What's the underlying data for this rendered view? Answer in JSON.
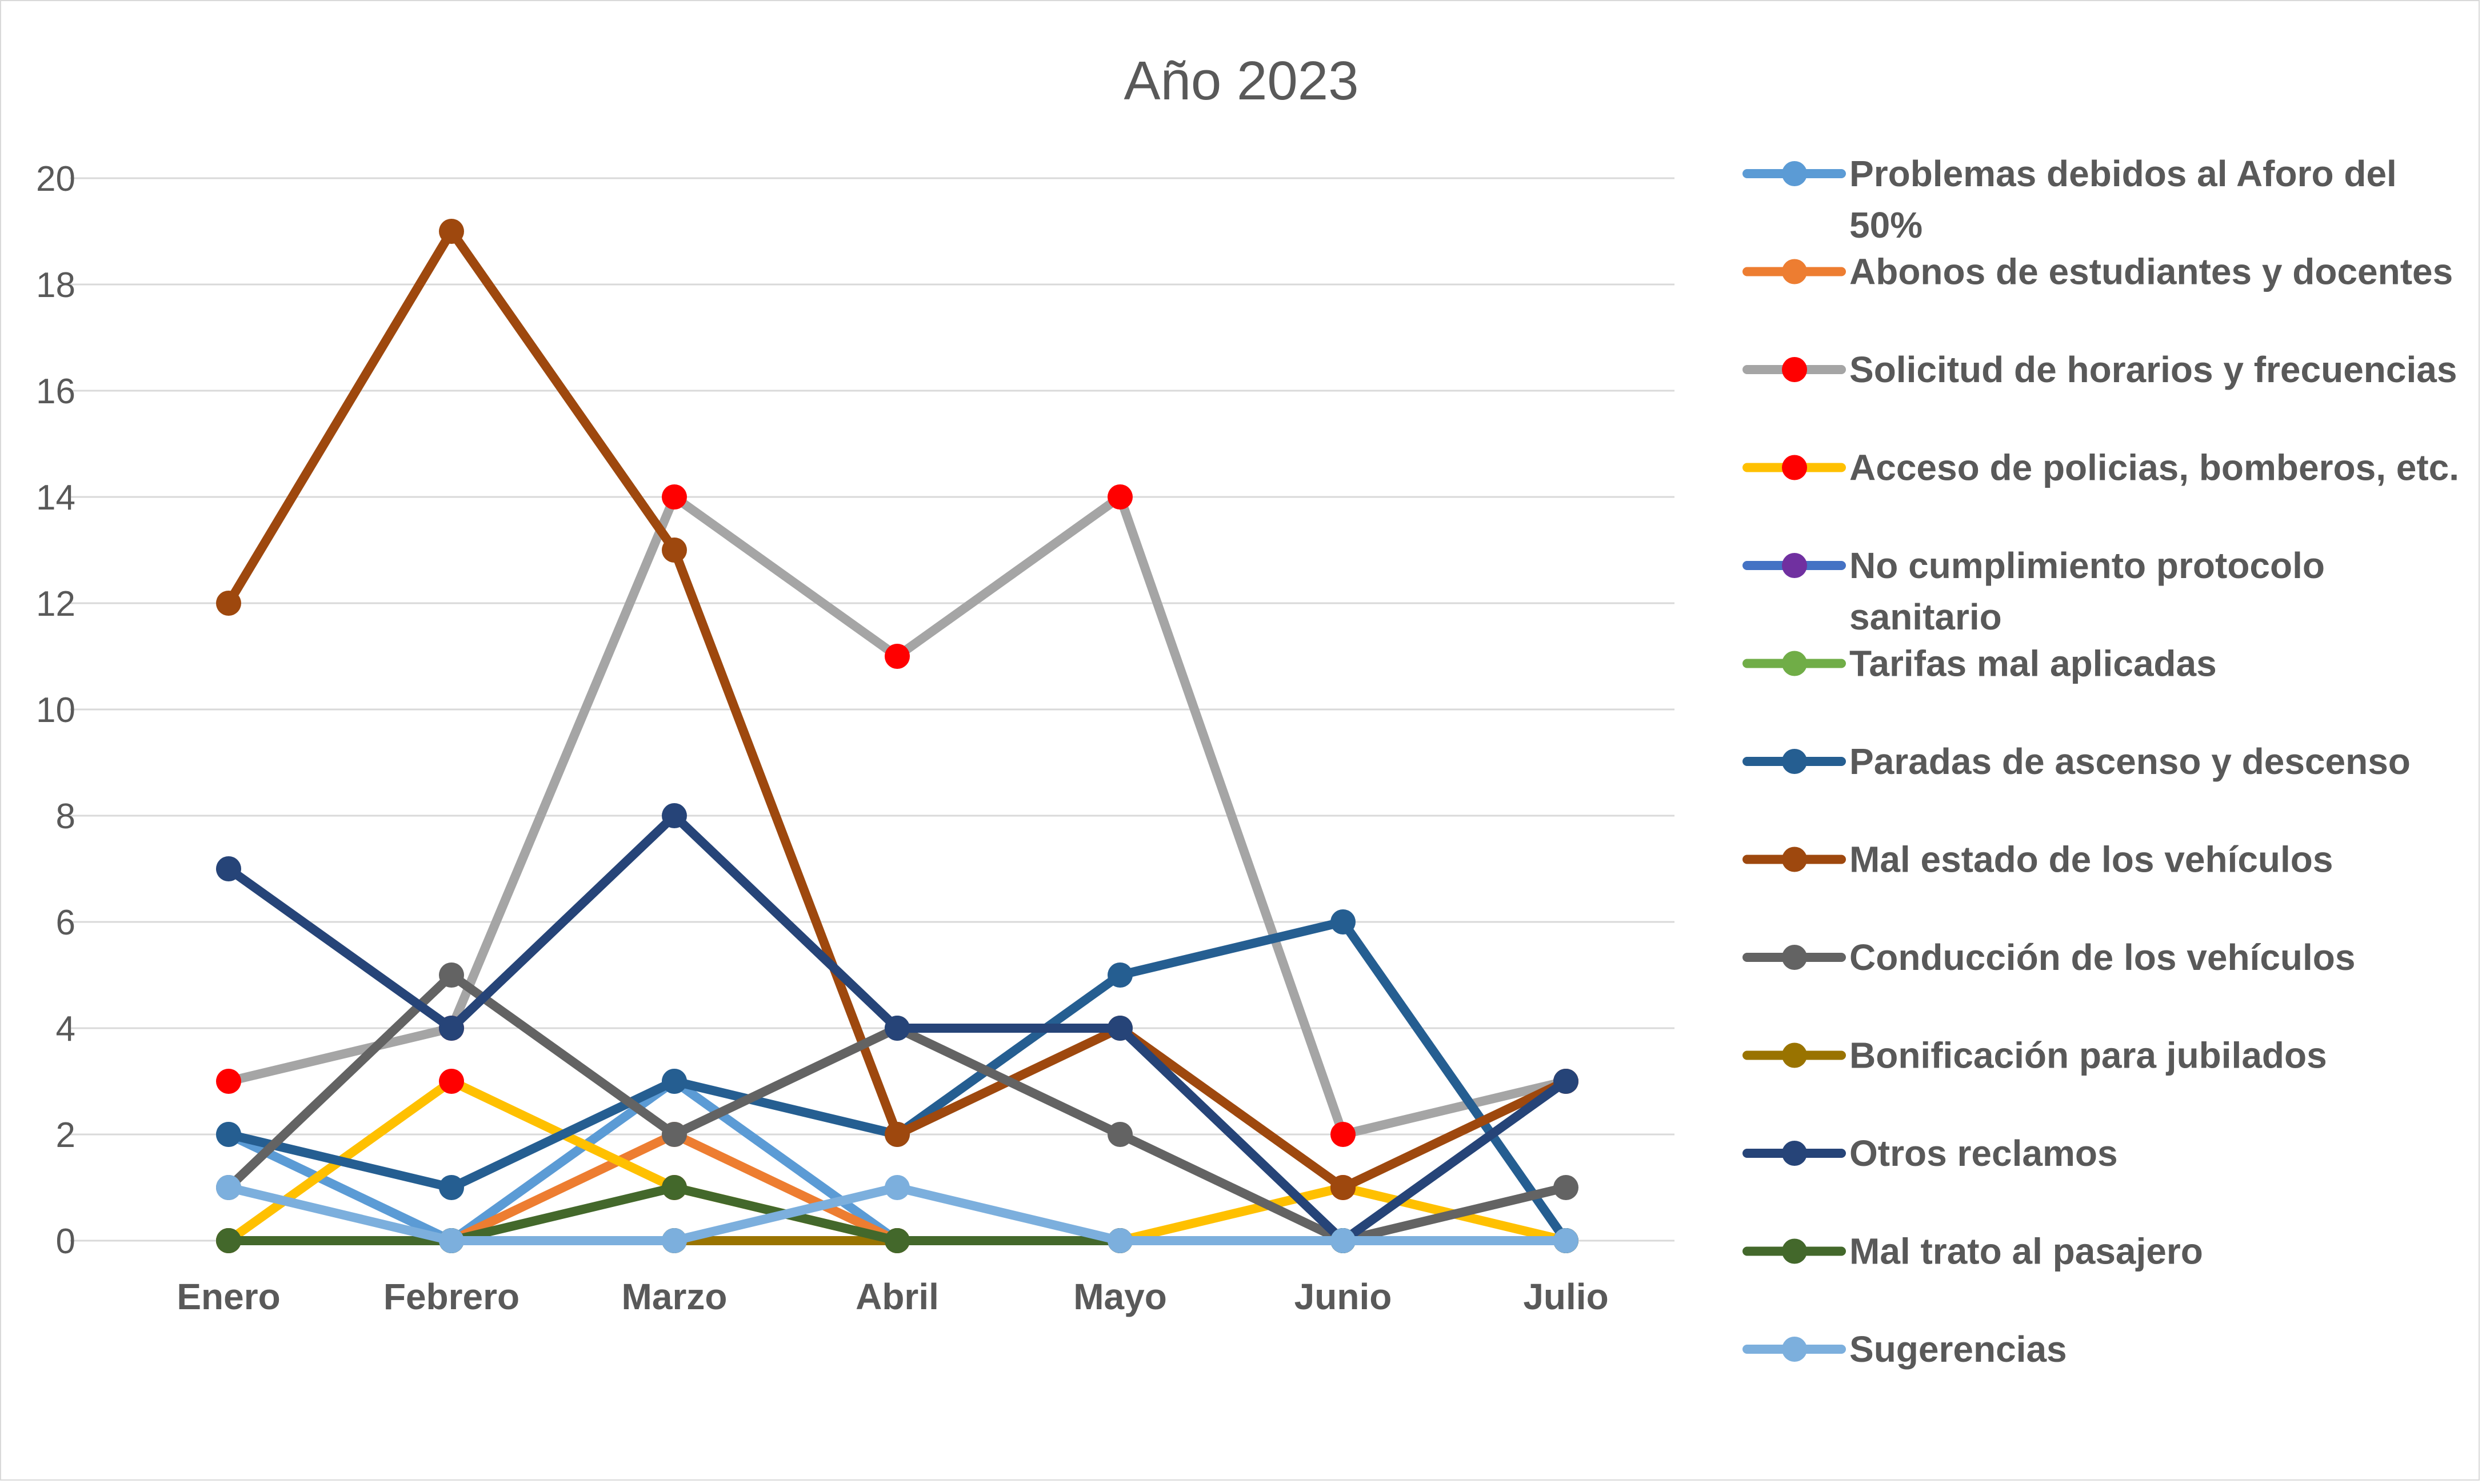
{
  "chart_data": {
    "type": "line",
    "title": "Año 2023",
    "xlabel": "",
    "ylabel": "",
    "ylim": [
      0,
      20
    ],
    "yticks": [
      "0",
      "2",
      "4",
      "6",
      "8",
      "10",
      "12",
      "14",
      "16",
      "18",
      "20"
    ],
    "grid": true,
    "legend_position": "right",
    "categories": [
      "Enero",
      "Febrero",
      "Marzo",
      "Abril",
      "Mayo",
      "Junio",
      "Julio"
    ],
    "series": [
      {
        "name": "Problemas debidos al  Aforo del 50%",
        "legend_lines": [
          "Problemas debidos al  Aforo del",
          "50%"
        ],
        "color": "#5b9bd5",
        "values": [
          2,
          0,
          3,
          0,
          0,
          0,
          0
        ]
      },
      {
        "name": "Abonos de estudiantes y docentes",
        "legend_lines": [
          "Abonos de estudiantes y docentes"
        ],
        "color": "#ed7d31",
        "values": [
          0,
          0,
          2,
          0,
          0,
          0,
          0
        ]
      },
      {
        "name": "Solicitud de horarios y frecuencias",
        "legend_lines": [
          "Solicitud de horarios y frecuencias"
        ],
        "color": "#a5a5a5",
        "marker_color": "#ff0000",
        "values": [
          3,
          4,
          14,
          11,
          14,
          2,
          3
        ]
      },
      {
        "name": "Acceso de policias, bomberos, etc.",
        "legend_lines": [
          "Acceso de policias, bomberos, etc."
        ],
        "color": "#ffc000",
        "marker_color": "#ff0000",
        "values": [
          0,
          3,
          1,
          0,
          0,
          1,
          0
        ]
      },
      {
        "name": "No cumplimiento protocolo sanitario",
        "legend_lines": [
          "No cumplimiento protocolo",
          "sanitario"
        ],
        "color": "#4472c4",
        "marker_color": "#7030a0",
        "values": [
          0,
          0,
          0,
          0,
          0,
          0,
          0
        ]
      },
      {
        "name": "Tarifas mal aplicadas",
        "legend_lines": [
          "Tarifas mal aplicadas"
        ],
        "color": "#70ad47",
        "values": [
          0,
          0,
          0,
          0,
          0,
          0,
          0
        ]
      },
      {
        "name": "Paradas de ascenso y descenso",
        "legend_lines": [
          "Paradas de ascenso y descenso"
        ],
        "color": "#255e91",
        "values": [
          2,
          1,
          3,
          2,
          5,
          6,
          0
        ]
      },
      {
        "name": "Mal estado de los vehículos",
        "legend_lines": [
          "Mal estado de los vehículos"
        ],
        "color": "#9e480e",
        "values": [
          12,
          19,
          13,
          2,
          4,
          1,
          3
        ]
      },
      {
        "name": "Conducción de los vehículos",
        "legend_lines": [
          "Conducción de los vehículos"
        ],
        "color": "#636363",
        "values": [
          1,
          5,
          2,
          4,
          2,
          0,
          1
        ]
      },
      {
        "name": "Bonificación para jubilados",
        "legend_lines": [
          "Bonificación para jubilados"
        ],
        "color": "#997300",
        "values": [
          0,
          0,
          0,
          0,
          0,
          0,
          0
        ]
      },
      {
        "name": "Otros reclamos",
        "legend_lines": [
          "Otros reclamos"
        ],
        "color": "#264478",
        "values": [
          7,
          4,
          8,
          4,
          4,
          0,
          3
        ]
      },
      {
        "name": "Mal trato al pasajero",
        "legend_lines": [
          "Mal trato al pasajero"
        ],
        "color": "#43682b",
        "values": [
          0,
          0,
          1,
          0,
          0,
          0,
          0
        ]
      },
      {
        "name": "Sugerencias",
        "legend_lines": [
          "Sugerencias"
        ],
        "color": "#7cafdd",
        "values": [
          1,
          0,
          0,
          1,
          0,
          0,
          0
        ]
      }
    ]
  }
}
